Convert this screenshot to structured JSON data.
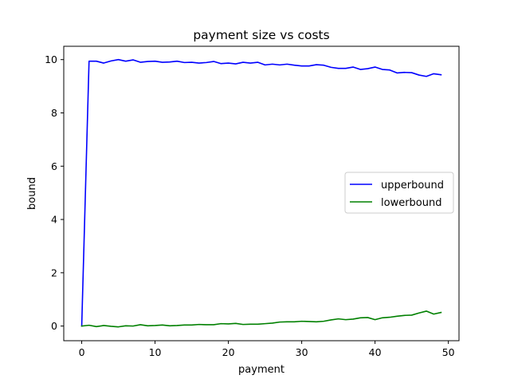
{
  "chart_data": {
    "type": "line",
    "title": "payment size vs costs",
    "xlabel": "payment",
    "ylabel": "bound",
    "xlim": [
      -2.45,
      51.45
    ],
    "ylim": [
      -0.55,
      10.5
    ],
    "xticks": [
      0,
      10,
      20,
      30,
      40,
      50
    ],
    "xtick_labels": [
      "0",
      "10",
      "20",
      "30",
      "40",
      "50"
    ],
    "yticks": [
      0,
      2,
      4,
      6,
      8,
      10
    ],
    "ytick_labels": [
      "0",
      "2",
      "4",
      "6",
      "8",
      "10"
    ],
    "grid": false,
    "legend_position": "center-right",
    "x": [
      0,
      1,
      2,
      3,
      4,
      5,
      6,
      7,
      8,
      9,
      10,
      11,
      12,
      13,
      14,
      15,
      16,
      17,
      18,
      19,
      20,
      21,
      22,
      23,
      24,
      25,
      26,
      27,
      28,
      29,
      30,
      31,
      32,
      33,
      34,
      35,
      36,
      37,
      38,
      39,
      40,
      41,
      42,
      43,
      44,
      45,
      46,
      47,
      48,
      49
    ],
    "series": [
      {
        "name": "upperbound",
        "color": "#0000ff",
        "values": [
          0.0,
          9.94,
          9.94,
          9.87,
          9.95,
          10.0,
          9.94,
          9.99,
          9.9,
          9.93,
          9.94,
          9.9,
          9.91,
          9.94,
          9.89,
          9.9,
          9.87,
          9.89,
          9.93,
          9.85,
          9.87,
          9.84,
          9.9,
          9.87,
          9.9,
          9.8,
          9.83,
          9.8,
          9.83,
          9.79,
          9.76,
          9.76,
          9.81,
          9.79,
          9.71,
          9.67,
          9.67,
          9.72,
          9.63,
          9.66,
          9.72,
          9.63,
          9.61,
          9.5,
          9.52,
          9.51,
          9.42,
          9.37,
          9.47,
          9.43
        ]
      },
      {
        "name": "lowerbound",
        "color": "#008000",
        "values": [
          0.0,
          0.03,
          -0.02,
          0.02,
          -0.01,
          -0.03,
          0.01,
          0.0,
          0.05,
          0.01,
          0.02,
          0.04,
          0.01,
          0.02,
          0.04,
          0.04,
          0.06,
          0.05,
          0.05,
          0.09,
          0.08,
          0.1,
          0.06,
          0.07,
          0.07,
          0.09,
          0.11,
          0.15,
          0.16,
          0.16,
          0.18,
          0.17,
          0.16,
          0.18,
          0.23,
          0.27,
          0.24,
          0.26,
          0.31,
          0.32,
          0.24,
          0.31,
          0.33,
          0.37,
          0.4,
          0.41,
          0.49,
          0.56,
          0.45,
          0.51
        ]
      }
    ]
  }
}
